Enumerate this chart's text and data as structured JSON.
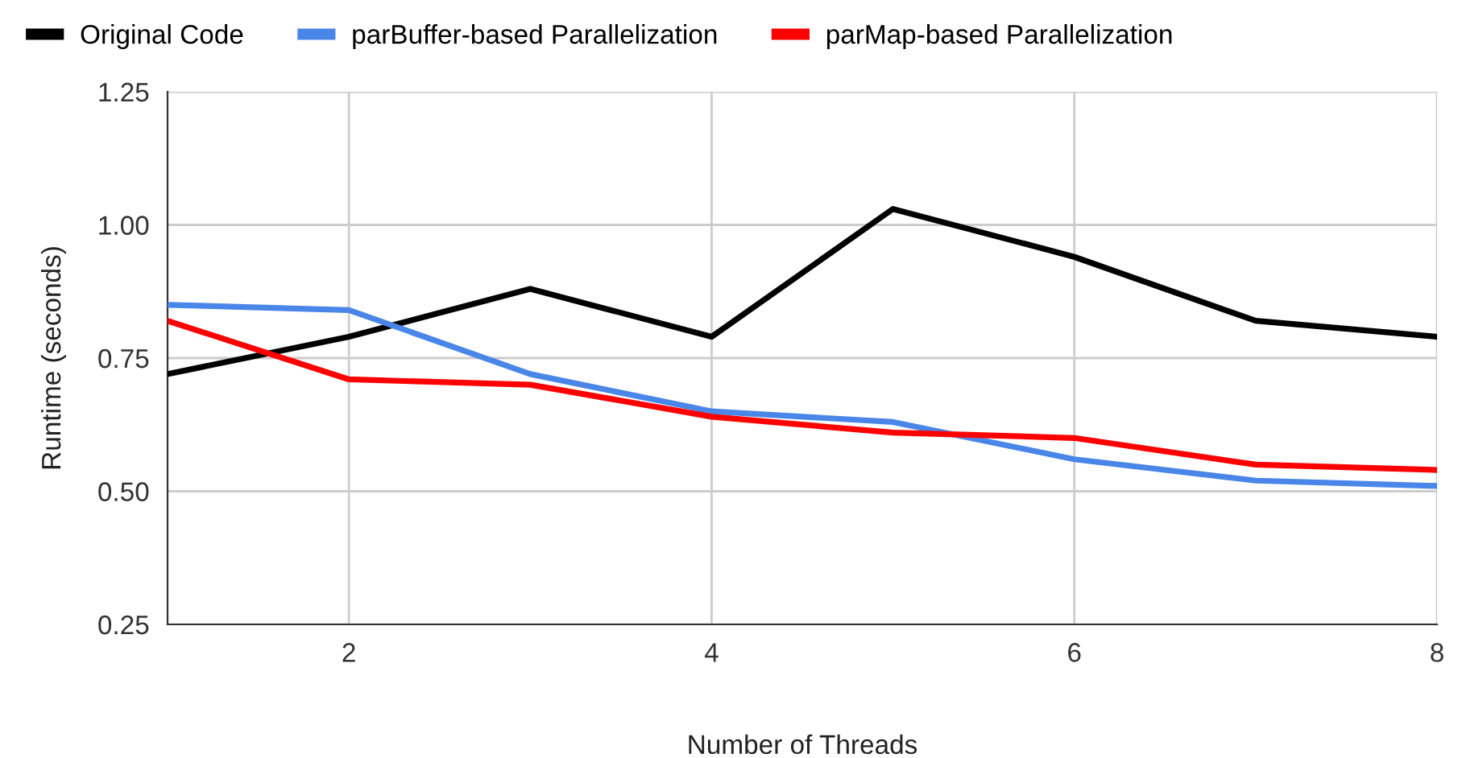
{
  "chart_data": {
    "type": "line",
    "xlabel": "Number of Threads",
    "ylabel": "Runtime (seconds)",
    "x": [
      1,
      2,
      3,
      4,
      5,
      6,
      7,
      8
    ],
    "series": [
      {
        "name": "Original Code",
        "color": "#000000",
        "values": [
          0.72,
          0.79,
          0.88,
          0.79,
          1.03,
          0.94,
          0.82,
          0.79
        ]
      },
      {
        "name": "parBuffer-based Parallelization",
        "color": "#4a86e8",
        "values": [
          0.85,
          0.84,
          0.72,
          0.65,
          0.63,
          0.56,
          0.52,
          0.51
        ]
      },
      {
        "name": "parMap-based Parallelization",
        "color": "#ff0000",
        "values": [
          0.82,
          0.71,
          0.7,
          0.64,
          0.61,
          0.6,
          0.55,
          0.54
        ]
      }
    ],
    "xlim": [
      1,
      8
    ],
    "xticks": [
      2,
      4,
      6,
      8
    ],
    "ylim": [
      0.25,
      1.25
    ],
    "yticks": [
      {
        "value": 0.25,
        "label": "0.25"
      },
      {
        "value": 0.5,
        "label": "0.50"
      },
      {
        "value": 0.75,
        "label": "0.75"
      },
      {
        "value": 1.0,
        "label": "1.00"
      },
      {
        "value": 1.25,
        "label": "1.25"
      }
    ],
    "grid": true,
    "legend": "top left",
    "marker": "none",
    "line_style": "solid"
  }
}
